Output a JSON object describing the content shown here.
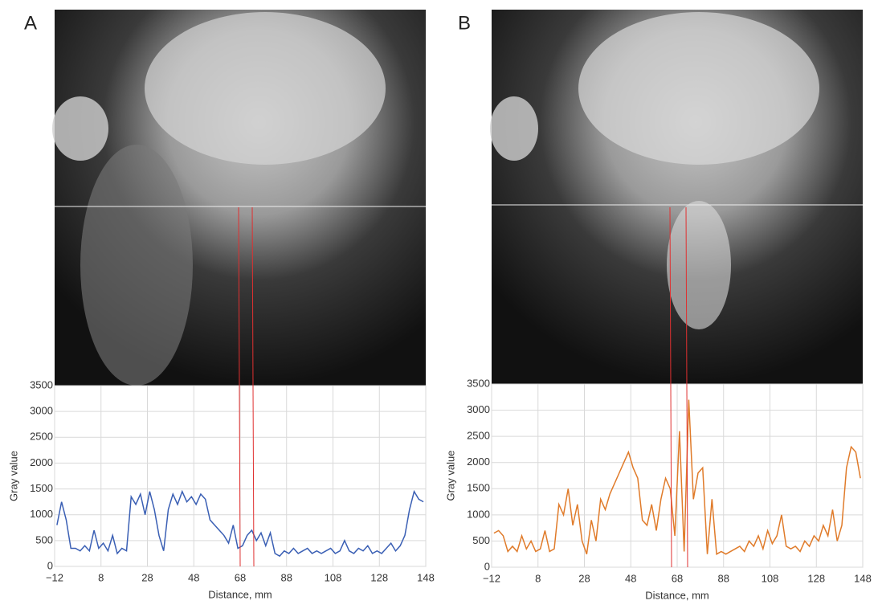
{
  "chart_data": [
    {
      "type": "line",
      "panel_label": "A",
      "ylabel": "Gray value",
      "xlabel": "Distance, mm",
      "color": "#3a5fb4",
      "grid": true,
      "xlim": [
        -12,
        148
      ],
      "ylim": [
        0,
        3500
      ],
      "xticks": [
        {
          "value": -12,
          "label": "−12"
        },
        8,
        28,
        48,
        68,
        88,
        108,
        128,
        148
      ],
      "yticks": [
        0,
        500,
        1000,
        1500,
        2000,
        2500,
        3000,
        3500
      ],
      "x": [
        -11,
        -9,
        -7,
        -5,
        -3,
        -1,
        1,
        3,
        5,
        7,
        9,
        11,
        13,
        15,
        17,
        19,
        21,
        23,
        25,
        27,
        29,
        31,
        33,
        35,
        37,
        39,
        41,
        43,
        45,
        47,
        49,
        51,
        53,
        55,
        57,
        59,
        61,
        63,
        65,
        67,
        69,
        71,
        73,
        75,
        77,
        79,
        81,
        83,
        85,
        87,
        89,
        91,
        93,
        95,
        97,
        99,
        101,
        103,
        105,
        107,
        109,
        111,
        113,
        115,
        117,
        119,
        121,
        123,
        125,
        127,
        129,
        131,
        133,
        135,
        137,
        139,
        141,
        143,
        145,
        147
      ],
      "values": [
        800,
        1250,
        900,
        350,
        350,
        300,
        400,
        300,
        700,
        350,
        450,
        300,
        600,
        250,
        350,
        300,
        1350,
        1200,
        1400,
        1000,
        1450,
        1100,
        600,
        300,
        1100,
        1400,
        1200,
        1450,
        1250,
        1350,
        1200,
        1400,
        1300,
        900,
        800,
        700,
        600,
        450,
        800,
        350,
        400,
        600,
        700,
        500,
        650,
        400,
        650,
        250,
        200,
        300,
        250,
        350,
        250,
        300,
        350,
        250,
        300,
        250,
        300,
        350,
        250,
        300,
        500,
        300,
        250,
        350,
        300,
        400,
        250,
        300,
        250,
        350,
        450,
        300,
        400,
        600,
        1100,
        1450,
        1300,
        1250
      ]
    },
    {
      "type": "line",
      "panel_label": "B",
      "ylabel": "Gray value",
      "xlabel": "Distance, mm",
      "color": "#e07b2a",
      "grid": true,
      "xlim": [
        -12,
        148
      ],
      "ylim": [
        0,
        3500
      ],
      "xticks": [
        {
          "value": -12,
          "label": "−12"
        },
        8,
        28,
        48,
        68,
        88,
        108,
        128,
        148
      ],
      "yticks": [
        0,
        500,
        1000,
        1500,
        2000,
        2500,
        3000,
        3500
      ],
      "x": [
        -11,
        -9,
        -7,
        -5,
        -3,
        -1,
        1,
        3,
        5,
        7,
        9,
        11,
        13,
        15,
        17,
        19,
        21,
        23,
        25,
        27,
        29,
        31,
        33,
        35,
        37,
        39,
        41,
        43,
        45,
        47,
        49,
        51,
        53,
        55,
        57,
        59,
        61,
        63,
        65,
        67,
        69,
        71,
        73,
        75,
        77,
        79,
        81,
        83,
        85,
        87,
        89,
        91,
        93,
        95,
        97,
        99,
        101,
        103,
        105,
        107,
        109,
        111,
        113,
        115,
        117,
        119,
        121,
        123,
        125,
        127,
        129,
        131,
        133,
        135,
        137,
        139,
        141,
        143,
        145,
        147
      ],
      "values": [
        650,
        700,
        600,
        300,
        400,
        300,
        600,
        350,
        500,
        300,
        350,
        700,
        300,
        350,
        1200,
        1000,
        1500,
        800,
        1200,
        500,
        250,
        900,
        500,
        1300,
        1100,
        1400,
        1600,
        1800,
        2000,
        2200,
        1900,
        1700,
        900,
        800,
        1200,
        700,
        1300,
        1700,
        1500,
        600,
        2600,
        300,
        3200,
        1300,
        1800,
        1900,
        250,
        1300,
        250,
        300,
        250,
        300,
        350,
        400,
        300,
        500,
        400,
        600,
        350,
        700,
        450,
        600,
        1000,
        400,
        350,
        400,
        300,
        500,
        400,
        600,
        500,
        800,
        600,
        1100,
        500,
        800,
        1900,
        2300,
        2200,
        1700
      ]
    }
  ]
}
